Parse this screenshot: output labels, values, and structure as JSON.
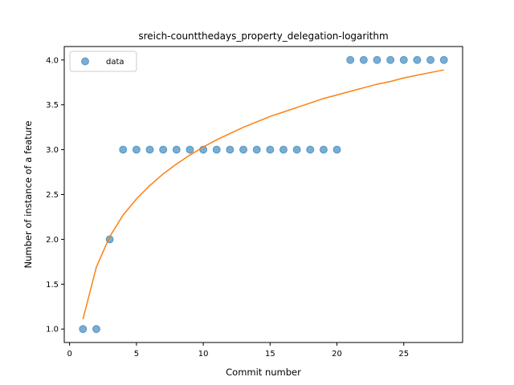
{
  "chart_data": {
    "type": "scatter",
    "title": "sreich-countthedays_property_delegation-logarithm",
    "xlabel": "Commit number",
    "ylabel": "Number of instance of a feature",
    "xlim": [
      -0.4,
      29.4
    ],
    "ylim": [
      0.85,
      4.15
    ],
    "xticks": [
      0,
      5,
      10,
      15,
      20,
      25
    ],
    "yticks": [
      1.0,
      1.5,
      2.0,
      2.5,
      3.0,
      3.5,
      4.0
    ],
    "legend": {
      "placement": "top-left",
      "entries": [
        "data"
      ]
    },
    "grid": false,
    "series": [
      {
        "name": "data",
        "kind": "scatter",
        "color": "#1f77b4",
        "x": [
          1,
          2,
          3,
          4,
          5,
          6,
          7,
          8,
          9,
          10,
          11,
          12,
          13,
          14,
          15,
          16,
          17,
          18,
          19,
          20,
          21,
          22,
          23,
          24,
          25,
          26,
          27,
          28
        ],
        "y": [
          1,
          1,
          2,
          3,
          3,
          3,
          3,
          3,
          3,
          3,
          3,
          3,
          3,
          3,
          3,
          3,
          3,
          3,
          3,
          3,
          4,
          4,
          4,
          4,
          4,
          4,
          4,
          4
        ]
      },
      {
        "kind": "line",
        "color": "#ff7f0e",
        "x": [
          1,
          2,
          3,
          4,
          5,
          6,
          7,
          8,
          9,
          10,
          11,
          12,
          13,
          14,
          15,
          16,
          17,
          18,
          19,
          20,
          21,
          22,
          23,
          24,
          25,
          26,
          27,
          28
        ],
        "y": [
          1.11,
          1.69,
          2.03,
          2.27,
          2.45,
          2.6,
          2.73,
          2.84,
          2.94,
          3.03,
          3.11,
          3.18,
          3.25,
          3.31,
          3.37,
          3.42,
          3.47,
          3.52,
          3.57,
          3.61,
          3.65,
          3.69,
          3.73,
          3.76,
          3.8,
          3.83,
          3.86,
          3.89
        ]
      }
    ]
  }
}
